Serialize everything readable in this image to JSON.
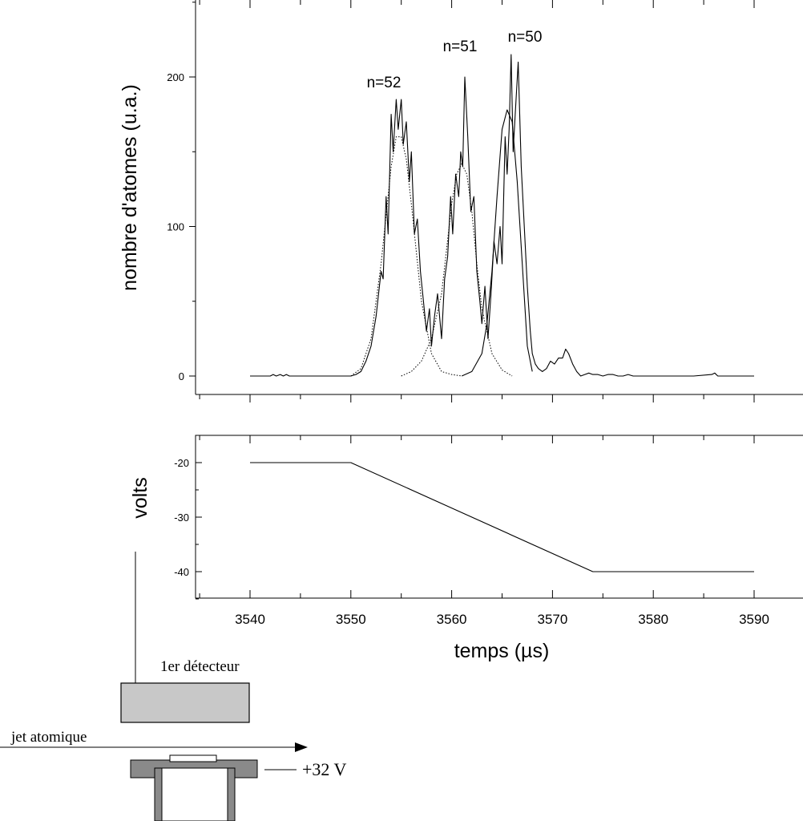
{
  "chart_data": [
    {
      "type": "line",
      "panel": "top",
      "ylabel": "nombre d'atomes (u.a.)",
      "xlim": [
        3535,
        3595
      ],
      "ylim": [
        -12,
        252
      ],
      "yticks": [
        0,
        100,
        200
      ],
      "ytick_labels": [
        "0",
        "100",
        "200"
      ],
      "annotations": [
        {
          "text": "n=52",
          "x": 3555,
          "y": 196
        },
        {
          "text": "n=51",
          "x": 3561,
          "y": 219
        },
        {
          "text": "n=50",
          "x": 3566,
          "y": 224
        }
      ],
      "series": [
        {
          "style": "solid",
          "x": [
            3540,
            3542,
            3542.3,
            3542.6,
            3543,
            3543.3,
            3543.6,
            3543.9,
            3544.2,
            3550,
            3550.5,
            3551,
            3551.5,
            3552,
            3552.5,
            3553,
            3553.2,
            3553.5,
            3553.7,
            3554,
            3554.2,
            3554.5,
            3554.7,
            3555,
            3555.2,
            3555.5,
            3555.8,
            3556,
            3556.3,
            3556.6,
            3556.9,
            3557.2,
            3557.5,
            3557.8,
            3558,
            3558.3,
            3558.6,
            3559,
            3559.3,
            3559.6,
            3559.9,
            3560.1,
            3560.4,
            3560.7,
            3560.9,
            3561.1,
            3561.3,
            3561.6,
            3561.9,
            3562.2,
            3562.5,
            3562.8,
            3563,
            3563.3,
            3563.6,
            3563.9,
            3564.2,
            3564.5,
            3564.8,
            3565,
            3565.3,
            3565.5,
            3565.7,
            3565.9,
            3566.1,
            3566.3,
            3566.6,
            3566.9,
            3567.2,
            3567.5,
            3567.8,
            3568,
            3568.3,
            3568.6,
            3569,
            3569.4,
            3569.8,
            3570.2,
            3570.6,
            3571,
            3571.3,
            3571.6,
            3572,
            3572.4,
            3572.8,
            3573.2,
            3573.6,
            3574,
            3574.5,
            3575,
            3575.5,
            3576,
            3576.5,
            3577,
            3577.5,
            3578,
            3580,
            3584,
            3585.8,
            3586.1,
            3586.4,
            3590
          ],
          "y": [
            0,
            0,
            1,
            0,
            1,
            0,
            1,
            0,
            0,
            0,
            1,
            3,
            10,
            20,
            40,
            70,
            65,
            120,
            95,
            175,
            150,
            185,
            165,
            185,
            155,
            170,
            130,
            150,
            95,
            105,
            70,
            50,
            30,
            45,
            20,
            40,
            55,
            25,
            65,
            80,
            120,
            95,
            135,
            120,
            150,
            140,
            200,
            160,
            110,
            120,
            70,
            50,
            35,
            60,
            25,
            55,
            90,
            75,
            100,
            75,
            160,
            135,
            165,
            215,
            150,
            175,
            210,
            140,
            100,
            60,
            30,
            15,
            8,
            5,
            3,
            5,
            10,
            8,
            12,
            12,
            18,
            15,
            8,
            3,
            0,
            1,
            2,
            1,
            1,
            0,
            1,
            1,
            0,
            0,
            1,
            0,
            0,
            0,
            1,
            2,
            0,
            0
          ]
        },
        {
          "style": "dotted",
          "name": "",
          "x": [
            3550,
            3551,
            3552,
            3553,
            3554,
            3554.5,
            3555,
            3555.5,
            3556,
            3557,
            3558,
            3559,
            3560,
            3561
          ],
          "y": [
            0,
            5,
            25,
            75,
            140,
            160,
            160,
            145,
            115,
            50,
            15,
            3,
            1,
            0
          ]
        },
        {
          "style": "dotted",
          "name": "",
          "x": [
            3555,
            3556,
            3557,
            3558,
            3559,
            3559.5,
            3560,
            3560.5,
            3561,
            3561.5,
            3562,
            3562.5,
            3563,
            3564,
            3565,
            3566
          ],
          "y": [
            0,
            3,
            10,
            25,
            55,
            85,
            115,
            135,
            142,
            135,
            110,
            75,
            45,
            15,
            4,
            0
          ]
        }
      ]
    },
    {
      "type": "line",
      "panel": "bottom",
      "ylabel": "volts",
      "xlabel": "temps (µs)",
      "xlim": [
        3535,
        3595
      ],
      "ylim": [
        -45,
        -15
      ],
      "yticks": [
        -20,
        -30,
        -40
      ],
      "ytick_labels": [
        "-20",
        "-30",
        "-40"
      ],
      "xticks": [
        3540,
        3550,
        3560,
        3570,
        3580,
        3590
      ],
      "xtick_labels": [
        "3540",
        "3550",
        "3560",
        "3570",
        "3580",
        "3590"
      ],
      "series": [
        {
          "style": "solid",
          "x": [
            3540,
            3550,
            3574,
            3590
          ],
          "y": [
            -20,
            -20,
            -40,
            -40
          ]
        }
      ]
    },
    {
      "type": "line",
      "panel": "n=50 fit",
      "series": [
        {
          "style": "solid",
          "x": [
            3561,
            3562,
            3563,
            3563.5,
            3564,
            3564.5,
            3565,
            3565.5,
            3566,
            3566.5,
            3567,
            3567.5,
            3568
          ],
          "y": [
            0,
            3,
            15,
            35,
            70,
            120,
            165,
            178,
            170,
            130,
            75,
            20,
            3
          ]
        }
      ]
    }
  ],
  "diagram": {
    "detector_label": "1er détecteur",
    "beam_label": "jet atomique",
    "voltage_label": "+32 V"
  }
}
